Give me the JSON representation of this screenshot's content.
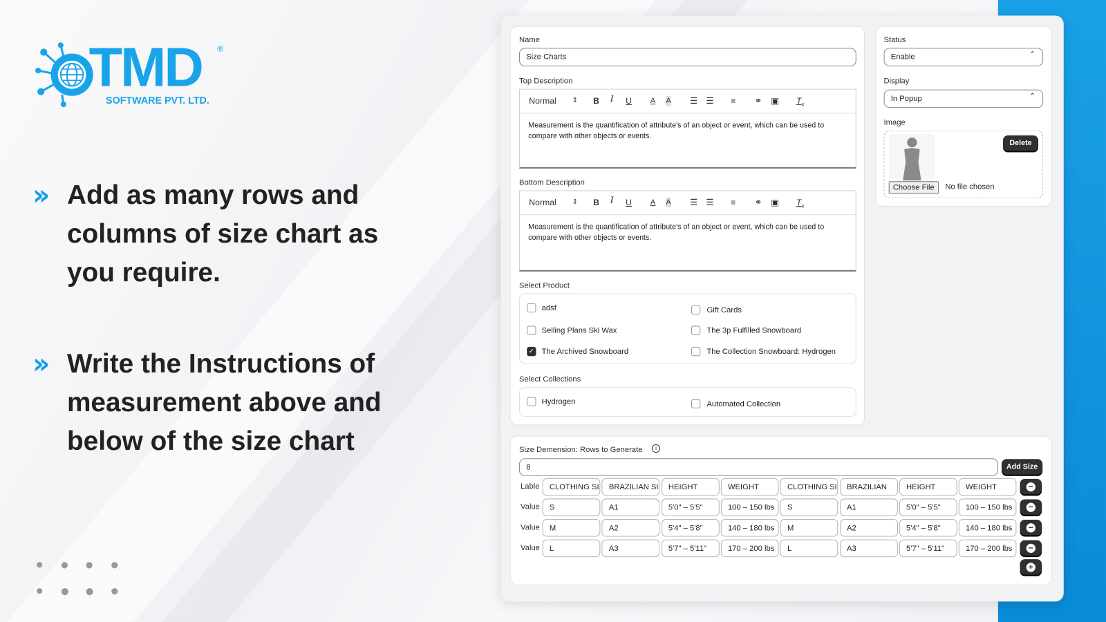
{
  "brand": {
    "logo_text": "TMD",
    "logo_subtitle": "SOFTWARE PVT. LTD.",
    "registered": "®",
    "accent": "#1aa0e6"
  },
  "promo": {
    "bullets": [
      {
        "icon": "double-chevron-right-icon",
        "lines": [
          "Add as many rows and",
          "columns of  size chart as",
          "you require."
        ]
      },
      {
        "icon": "double-chevron-right-icon",
        "lines": [
          "Write the Instructions of",
          "measurement above and",
          "below of the size chart"
        ]
      }
    ]
  },
  "form": {
    "name_label": "Name",
    "name_value": "Size Charts",
    "top_desc_label": "Top Description",
    "bottom_desc_label": "Bottom Description",
    "editor": {
      "format": "Normal",
      "toolbar": [
        "bold",
        "italic",
        "underline",
        "text-color",
        "background-color",
        "ordered-list",
        "bullet-list",
        "align",
        "link",
        "image",
        "clear-format"
      ],
      "top_text": "Measurement is the quantification of attribute's of an object or event, which can be used to compare with other objects or events.",
      "bottom_text": "Measurement is the quantification of attribute's of an object or event, which can be used to compare with other objects or events."
    },
    "select_product_label": "Select Product",
    "products": [
      {
        "label": "adsf",
        "checked": false
      },
      {
        "label": "Gift Cards",
        "checked": false
      },
      {
        "label": "Selling Plans Ski Wax",
        "checked": false
      },
      {
        "label": "The 3p Fulfilled Snowboard",
        "checked": false
      },
      {
        "label": "The Archived Snowboard",
        "checked": true
      },
      {
        "label": "The Collection Snowboard: Hydrogen",
        "checked": false
      }
    ],
    "select_collections_label": "Select Collections",
    "collections": [
      {
        "label": "Hydrogen",
        "checked": false
      },
      {
        "label": "Automated Collection",
        "checked": false
      }
    ]
  },
  "side": {
    "status_label": "Status",
    "status_value": "Enable",
    "display_label": "Display",
    "display_value": "In Popup",
    "image_label": "Image",
    "delete_label": "Delete",
    "choose_file_label": "Choose File",
    "no_file_text": "No file chosen"
  },
  "sizes": {
    "rows_label": "Size Demension: Rows to Generate",
    "rows_value": "8",
    "add_size_label": "Add Size",
    "label_row_title": "Lable",
    "value_row_title": "Value",
    "labels": [
      "CLOTHING SIZE",
      "BRAZILIAN SIZE",
      "HEIGHT",
      "WEIGHT",
      "CLOTHING SIZE",
      "BRAZILIAN",
      "HEIGHT",
      "WEIGHT"
    ],
    "values": [
      [
        "S",
        "A1",
        "5'0\" – 5'5\"",
        "100 – 150 lbs",
        "S",
        "A1",
        "5'0\" – 5'5\"",
        "100 – 150 lbs"
      ],
      [
        "M",
        "A2",
        "5'4\" – 5'8\"",
        "140 – 180 lbs",
        "M",
        "A2",
        "5'4\" – 5'8\"",
        "140 – 180 lbs"
      ],
      [
        "L",
        "A3",
        "5'7\" – 5'11\"",
        "170 – 200 lbs",
        "L",
        "A3",
        "5'7\" – 5'11\"",
        "170 – 200 lbs"
      ]
    ]
  }
}
